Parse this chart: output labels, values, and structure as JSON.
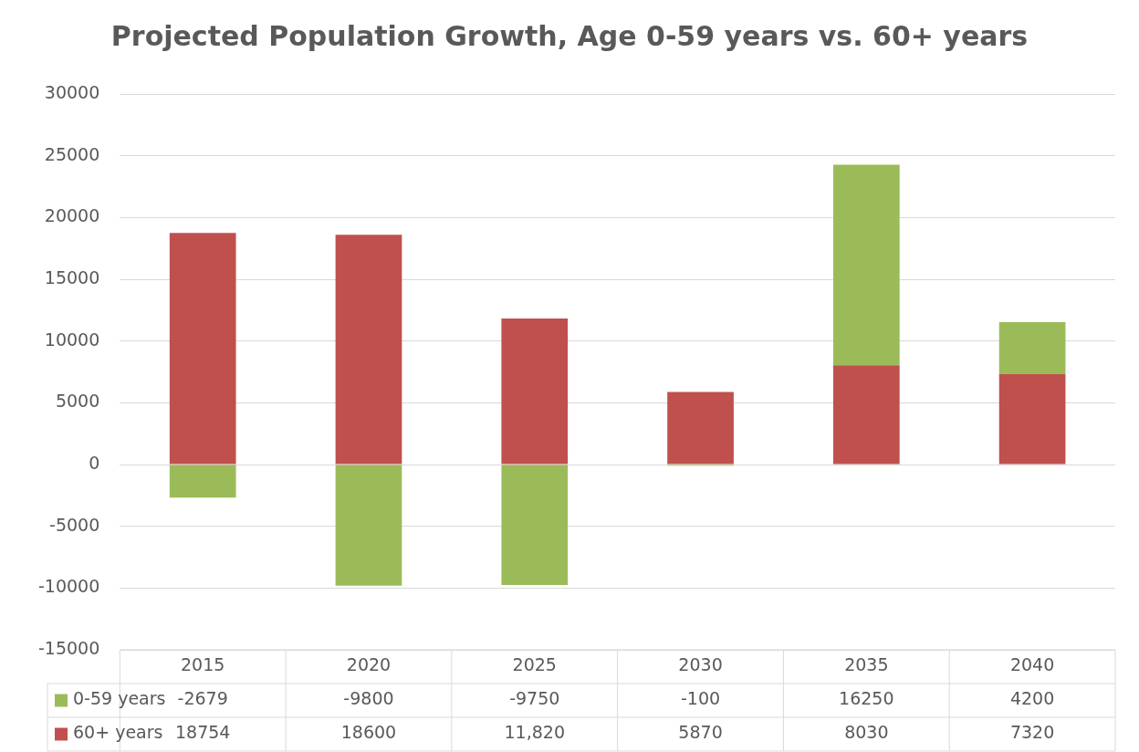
{
  "chart_data": {
    "type": "bar",
    "title": "Projected Population Growth, Age 0-59 years vs. 60+ years",
    "categories": [
      "2015",
      "2020",
      "2025",
      "2030",
      "2035",
      "2040"
    ],
    "stacked": true,
    "series": [
      {
        "name": "60+ years",
        "color": "#c0504d",
        "values": [
          18754,
          18600,
          11820,
          5870,
          8030,
          7320
        ],
        "value_labels": [
          "18754",
          "18600",
          "11,820",
          "5870",
          "8030",
          "7320"
        ]
      },
      {
        "name": "0-59 years",
        "color": "#9bbb59",
        "values": [
          -2679,
          -9800,
          -9750,
          -100,
          16250,
          4200
        ],
        "value_labels": [
          "-2679",
          "-9800",
          "-9750",
          "-100",
          "16250",
          "4200"
        ]
      }
    ],
    "ylim": [
      -15000,
      30000
    ],
    "yticks": [
      -15000,
      -10000,
      -5000,
      0,
      5000,
      10000,
      15000,
      20000,
      25000,
      30000
    ],
    "grid": "y",
    "legend": "bottom"
  }
}
